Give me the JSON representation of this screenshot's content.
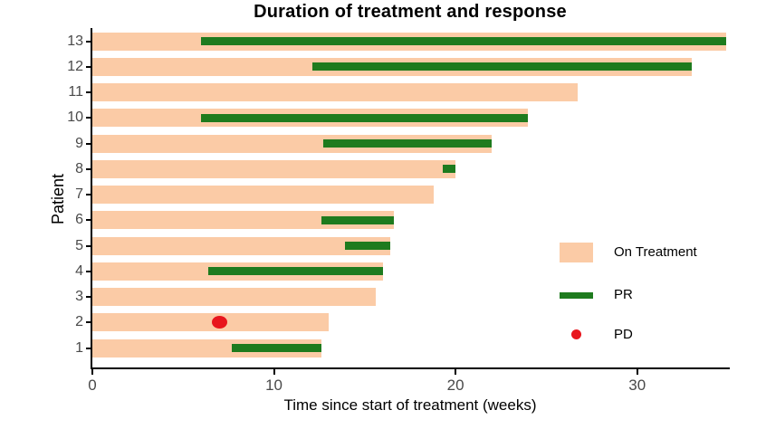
{
  "title": "Duration of treatment and response",
  "colors": {
    "on_treatment": "#FBCBA6",
    "pr": "#1E7B1E",
    "pd": "#E8161D",
    "axis": "#000000",
    "tick_label": "#4a4a4a"
  },
  "chart_data": {
    "type": "bar",
    "subtype": "swimmer",
    "orientation": "horizontal",
    "title": "Duration of treatment and response",
    "xlabel": "Time since start of treatment (weeks)",
    "ylabel": "Patient",
    "xlim": [
      0,
      35
    ],
    "xticks": [
      0,
      10,
      20,
      30
    ],
    "grid": false,
    "legend_position": "inside-right",
    "patients": [
      {
        "id": 13,
        "on_treatment_end": 34.9,
        "pr_start": 6.0,
        "pr_end": 34.9
      },
      {
        "id": 12,
        "on_treatment_end": 33.0,
        "pr_start": 12.1,
        "pr_end": 33.0
      },
      {
        "id": 11,
        "on_treatment_end": 26.7
      },
      {
        "id": 10,
        "on_treatment_end": 24.0,
        "pr_start": 6.0,
        "pr_end": 24.0
      },
      {
        "id": 9,
        "on_treatment_end": 22.0,
        "pr_start": 12.7,
        "pr_end": 22.0
      },
      {
        "id": 8,
        "on_treatment_end": 20.0,
        "pr_start": 19.3,
        "pr_end": 20.0
      },
      {
        "id": 7,
        "on_treatment_end": 18.8
      },
      {
        "id": 6,
        "on_treatment_end": 16.6,
        "pr_start": 12.6,
        "pr_end": 16.6
      },
      {
        "id": 5,
        "on_treatment_end": 16.4,
        "pr_start": 13.9,
        "pr_end": 16.4
      },
      {
        "id": 4,
        "on_treatment_end": 16.0,
        "pr_start": 6.4,
        "pr_end": 16.0
      },
      {
        "id": 3,
        "on_treatment_end": 15.6
      },
      {
        "id": 2,
        "on_treatment_end": 13.0,
        "pd_at": 7.0
      },
      {
        "id": 1,
        "on_treatment_end": 12.6,
        "pr_start": 7.7,
        "pr_end": 12.6
      }
    ],
    "legend": [
      {
        "label": "On Treatment",
        "marker": "bar",
        "color": "#FBCBA6"
      },
      {
        "label": "PR",
        "marker": "line",
        "color": "#1E7B1E"
      },
      {
        "label": "PD",
        "marker": "dot",
        "color": "#E8161D"
      }
    ]
  }
}
